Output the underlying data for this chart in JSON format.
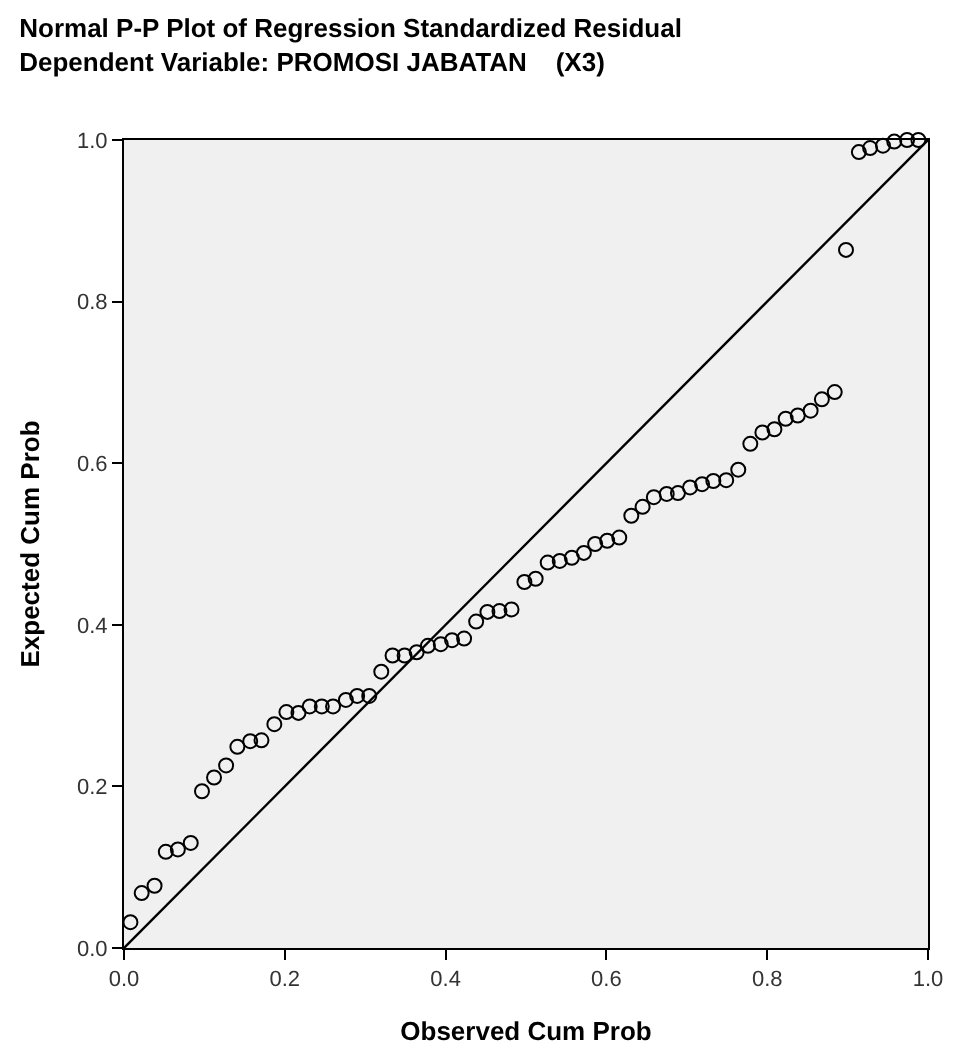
{
  "chart_data": {
    "type": "scatter",
    "title": "Normal P-P Plot of Regression Standardized Residual",
    "subtitle": "Dependent Variable: PROMOSI JABATAN    (X3)",
    "xlabel": "Observed Cum Prob",
    "ylabel": "Expected Cum Prob",
    "xlim": [
      0,
      1
    ],
    "ylim": [
      0,
      1
    ],
    "xticks": [
      {
        "value": 0,
        "label": "0.0"
      },
      0.2,
      0.4,
      0.6,
      0.8,
      {
        "value": 1,
        "label": "1.0"
      }
    ],
    "yticks": [
      {
        "value": 0,
        "label": "0.0"
      },
      0.2,
      0.4,
      0.6,
      0.8,
      {
        "value": 1,
        "label": "1.0"
      }
    ],
    "grid": false,
    "marker": "circle",
    "series": [
      {
        "color": "#000000",
        "x": [
          0.008,
          0.022,
          0.038,
          0.052,
          0.067,
          0.083,
          0.097,
          0.112,
          0.127,
          0.141,
          0.157,
          0.171,
          0.187,
          0.202,
          0.217,
          0.231,
          0.246,
          0.26,
          0.276,
          0.29,
          0.305,
          0.32,
          0.334,
          0.349,
          0.364,
          0.378,
          0.394,
          0.408,
          0.423,
          0.438,
          0.452,
          0.467,
          0.482,
          0.498,
          0.512,
          0.527,
          0.542,
          0.557,
          0.572,
          0.586,
          0.601,
          0.616,
          0.631,
          0.645,
          0.659,
          0.675,
          0.689,
          0.704,
          0.719,
          0.733,
          0.749,
          0.764,
          0.779,
          0.794,
          0.809,
          0.823,
          0.838,
          0.854,
          0.868,
          0.884,
          0.898,
          0.914,
          0.928,
          0.944,
          0.958,
          0.974,
          0.988
        ],
        "values": [
          0.032,
          0.068,
          0.077,
          0.119,
          0.122,
          0.13,
          0.194,
          0.211,
          0.226,
          0.249,
          0.256,
          0.257,
          0.277,
          0.292,
          0.291,
          0.299,
          0.299,
          0.299,
          0.307,
          0.312,
          0.312,
          0.342,
          0.362,
          0.362,
          0.366,
          0.374,
          0.376,
          0.381,
          0.383,
          0.404,
          0.416,
          0.417,
          0.419,
          0.453,
          0.457,
          0.477,
          0.479,
          0.483,
          0.489,
          0.5,
          0.504,
          0.508,
          0.535,
          0.546,
          0.558,
          0.562,
          0.563,
          0.57,
          0.574,
          0.578,
          0.579,
          0.592,
          0.624,
          0.638,
          0.642,
          0.655,
          0.659,
          0.665,
          0.679,
          0.688,
          0.864,
          0.985,
          0.99,
          0.993,
          0.998,
          1.0,
          1.0
        ]
      },
      {
        "type": "line",
        "marker": "none",
        "color": "#000000",
        "x": [
          0,
          1
        ],
        "values": [
          0,
          1
        ]
      }
    ]
  }
}
